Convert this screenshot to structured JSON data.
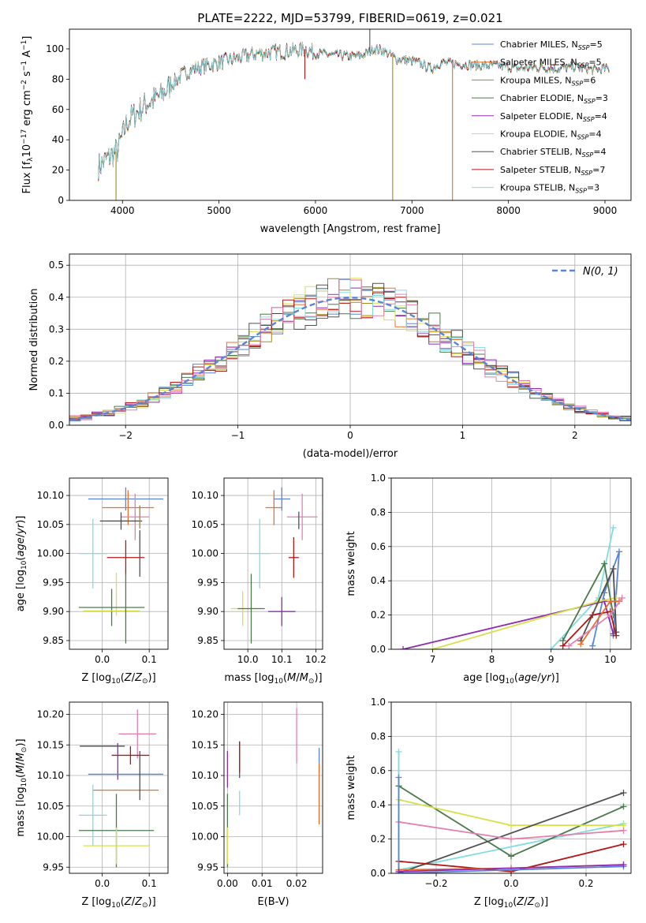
{
  "colors": {
    "Chabrier MILES": "#5b84d6",
    "Salpeter MILES": "#e8702a",
    "Kroupa MILES": "#a8891a",
    "Chabrier ELODIE": "#4a7a4a",
    "Salpeter ELODIE": "#8e2bb3",
    "Kroupa ELODIE": "#d6e04a",
    "Chabrier STELIB": "#505050",
    "Salpeter STELIB": "#b01818",
    "Kroupa STELIB": "#7fdde0",
    "extra_pink": "#e57fb0",
    "normal_curve": "#5b84d6",
    "grid": "#b0b0b0"
  },
  "chart_data": [
    {
      "id": "spectrum",
      "type": "line",
      "title": "PLATE=2222, MJD=53799, FIBERID=0619, z=0.021",
      "xlabel": "wavelength [Angstrom, rest frame]",
      "ylabel": "Flux [f",
      "xlim": [
        3450,
        9270
      ],
      "ylim": [
        0,
        113
      ],
      "xticks": [
        "4000",
        "5000",
        "6000",
        "7000",
        "8000",
        "9000"
      ],
      "yticks": [
        "0",
        "20",
        "40",
        "60",
        "80",
        "100"
      ],
      "grid": false,
      "legend_position": "top-right",
      "legend": [
        {
          "model": "Chabrier MILES",
          "n": "5"
        },
        {
          "model": "Salpeter MILES",
          "n": "5"
        },
        {
          "model": "Kroupa MILES",
          "n": "6"
        },
        {
          "model": "Chabrier ELODIE",
          "n": "3"
        },
        {
          "model": "Salpeter ELODIE",
          "n": "4"
        },
        {
          "model": "Kroupa ELODIE",
          "n": "4"
        },
        {
          "model": "Chabrier STELIB",
          "n": "4"
        },
        {
          "model": "Salpeter STELIB",
          "n": "7"
        },
        {
          "model": "Kroupa STELIB",
          "n": "3"
        }
      ],
      "spectrum_continuum": [
        [
          3750,
          22
        ],
        [
          3850,
          28
        ],
        [
          3950,
          33
        ],
        [
          4050,
          52
        ],
        [
          4150,
          58
        ],
        [
          4250,
          64
        ],
        [
          4400,
          69
        ],
        [
          4500,
          76
        ],
        [
          4600,
          82
        ],
        [
          4700,
          86
        ],
        [
          4800,
          88
        ],
        [
          5000,
          91
        ],
        [
          5200,
          94
        ],
        [
          5400,
          97
        ],
        [
          5600,
          98
        ],
        [
          5800,
          99
        ],
        [
          5900,
          100
        ],
        [
          6000,
          97
        ],
        [
          6200,
          96
        ],
        [
          6400,
          95
        ],
        [
          6500,
          96
        ],
        [
          6560,
          98
        ],
        [
          6600,
          100
        ],
        [
          6700,
          99
        ],
        [
          6850,
          93
        ],
        [
          7000,
          92
        ],
        [
          7100,
          90
        ],
        [
          7200,
          87
        ],
        [
          7300,
          91
        ],
        [
          7500,
          90
        ],
        [
          7700,
          89
        ],
        [
          7900,
          89
        ],
        [
          8100,
          87
        ],
        [
          8300,
          88
        ],
        [
          8500,
          87
        ],
        [
          8700,
          88
        ],
        [
          8900,
          86
        ],
        [
          9000,
          87
        ]
      ],
      "spectrum_features": [
        {
          "x": 3933,
          "series": "Kroupa MILES",
          "to": 0
        },
        {
          "x": 6800,
          "series": "Kroupa MILES",
          "to": 0
        },
        {
          "x": 7420,
          "series": "Salpeter MILES",
          "to": 0
        },
        {
          "x": 5890,
          "series": "Salpeter STELIB",
          "to": 80
        },
        {
          "x": 6563,
          "series": "Chabrier STELIB",
          "to": 113
        }
      ]
    },
    {
      "id": "residual_histogram",
      "type": "line",
      "xlabel": "(data-model)/error",
      "ylabel": "Normed distribution",
      "xlim": [
        -2.5,
        2.5
      ],
      "ylim": [
        0,
        0.535
      ],
      "xticks": [
        "−2",
        "−1",
        "0",
        "1",
        "2"
      ],
      "yticks": [
        "0.0",
        "0.1",
        "0.2",
        "0.3",
        "0.4",
        "0.5"
      ],
      "grid": true,
      "legend_position": "top-right",
      "legend": [
        {
          "label": "N(0,1)"
        }
      ],
      "histogram_bin_width": 0.1,
      "histogram_series": [
        "Chabrier MILES",
        "Salpeter MILES",
        "Kroupa MILES",
        "Chabrier ELODIE",
        "Salpeter ELODIE",
        "Kroupa ELODIE",
        "Chabrier STELIB",
        "Salpeter STELIB",
        "Kroupa STELIB",
        "extra_pink"
      ]
    },
    {
      "id": "age_vs_Z",
      "type": "scatter",
      "xlabel": "Z [log",
      "ylabel": "age  [log",
      "xlim": [
        -0.07,
        0.14
      ],
      "ylim": [
        9.835,
        10.13
      ],
      "xticks": [
        "0.0",
        "0.1"
      ],
      "yticks": [
        "9.85",
        "9.90",
        "9.95",
        "10.00",
        "10.05",
        "10.10"
      ],
      "grid": true,
      "points": [
        {
          "series": "Chabrier MILES",
          "x": 0.05,
          "y": 10.094,
          "xerr": 0.08,
          "yerr": 0.02
        },
        {
          "series": "Salpeter MILES",
          "x": 0.055,
          "y": 10.079,
          "xerr": 0.055,
          "yerr": 0.03
        },
        {
          "series": "extra_pink",
          "x": 0.07,
          "y": 10.063,
          "xerr": 0.03,
          "yerr": 0.04
        },
        {
          "series": "Chabrier STELIB",
          "x": 0.04,
          "y": 10.056,
          "xerr": 0.045,
          "yerr": 0.015
        },
        {
          "series": "Kroupa MILES",
          "x": 0.08,
          "y": 10.063,
          "xerr": 0.0,
          "yerr": 0.02
        },
        {
          "series": "Kroupa STELIB",
          "x": -0.02,
          "y": 10.0,
          "xerr": 0.03,
          "yerr": 0.06
        },
        {
          "series": "Salpeter STELIB",
          "x": 0.05,
          "y": 9.993,
          "xerr": 0.04,
          "yerr": 0.03
        },
        {
          "series": "Chabrier STELIB",
          "x": 0.08,
          "y": 10.0,
          "xerr": 0.0,
          "yerr": 0.04
        },
        {
          "series": "Kroupa ELODIE",
          "x": 0.03,
          "y": 9.93,
          "xerr": 0.0,
          "yerr": 0.037
        },
        {
          "series": "Chabrier ELODIE",
          "x": 0.02,
          "y": 9.907,
          "xerr": 0.07,
          "yerr": 0.032
        },
        {
          "series": "Kroupa ELODIE",
          "x": 0.02,
          "y": 9.901,
          "xerr": 0.06,
          "yerr": 0.0
        },
        {
          "series": "Chabrier ELODIE",
          "x": 0.05,
          "y": 9.905,
          "xerr": 0.0,
          "yerr": 0.06
        }
      ]
    },
    {
      "id": "age_vs_mass",
      "type": "scatter",
      "xlabel": "mass [log",
      "ylabel": "",
      "xlim": [
        9.93,
        10.22
      ],
      "ylim": [
        9.835,
        10.13
      ],
      "xticks": [
        "10.0",
        "10.1",
        "10.2"
      ],
      "yticks": [
        "9.85",
        "9.90",
        "9.95",
        "10.00",
        "10.05",
        "10.10"
      ],
      "grid": true,
      "points": [
        {
          "series": "Chabrier MILES",
          "x": 10.1,
          "y": 10.094,
          "xerr": 0.025,
          "yerr": 0.02
        },
        {
          "series": "Salpeter MILES",
          "x": 10.077,
          "y": 10.079,
          "xerr": 0.025,
          "yerr": 0.03
        },
        {
          "series": "extra_pink",
          "x": 10.16,
          "y": 10.063,
          "xerr": 0.045,
          "yerr": 0.04
        },
        {
          "series": "Chabrier STELIB",
          "x": 10.15,
          "y": 10.057,
          "xerr": 0.0,
          "yerr": 0.015
        },
        {
          "series": "Kroupa STELIB",
          "x": 10.035,
          "y": 10.0,
          "xerr": 0.03,
          "yerr": 0.06
        },
        {
          "series": "Salpeter STELIB",
          "x": 10.135,
          "y": 9.993,
          "xerr": 0.015,
          "yerr": 0.035
        },
        {
          "series": "Kroupa ELODIE",
          "x": 9.985,
          "y": 9.905,
          "xerr": 0.035,
          "yerr": 0.03
        },
        {
          "series": "Chabrier ELODIE",
          "x": 10.01,
          "y": 9.905,
          "xerr": 0.04,
          "yerr": 0.06
        },
        {
          "series": "Salpeter ELODIE",
          "x": 10.1,
          "y": 9.9,
          "xerr": 0.04,
          "yerr": 0.025
        }
      ]
    },
    {
      "id": "mass_weight_vs_age",
      "type": "line",
      "xlabel": "age  [log",
      "ylabel": "mass weight",
      "xlim": [
        6.3,
        10.35
      ],
      "ylim": [
        0,
        1.0
      ],
      "xticks": [
        "7",
        "8",
        "9",
        "10"
      ],
      "yticks": [
        "0.0",
        "0.2",
        "0.4",
        "0.6",
        "0.8",
        "1.0"
      ],
      "grid": true,
      "series": [
        {
          "name": "Kroupa STELIB",
          "points": [
            [
              9.0,
              0.0
            ],
            [
              9.8,
              0.3
            ],
            [
              10.05,
              0.71
            ]
          ]
        },
        {
          "name": "Chabrier MILES",
          "points": [
            [
              9.7,
              0.02
            ],
            [
              9.9,
              0.33
            ],
            [
              10.15,
              0.57
            ],
            [
              10.05,
              0.08
            ]
          ]
        },
        {
          "name": "Salpeter ELODIE",
          "points": [
            [
              6.5,
              0.0
            ],
            [
              9.9,
              0.28
            ],
            [
              10.05,
              0.09
            ]
          ]
        },
        {
          "name": "Kroupa ELODIE",
          "points": [
            [
              7.0,
              0.0
            ],
            [
              9.8,
              0.28
            ],
            [
              10.1,
              0.3
            ]
          ]
        },
        {
          "name": "Chabrier ELODIE",
          "points": [
            [
              9.2,
              0.05
            ],
            [
              9.9,
              0.5
            ],
            [
              10.05,
              0.2
            ]
          ]
        },
        {
          "name": "Chabrier STELIB",
          "points": [
            [
              9.5,
              0.05
            ],
            [
              10.05,
              0.47
            ],
            [
              10.1,
              0.1
            ]
          ]
        },
        {
          "name": "Salpeter STELIB",
          "points": [
            [
              9.2,
              0.02
            ],
            [
              9.7,
              0.2
            ],
            [
              10.0,
              0.22
            ],
            [
              10.1,
              0.08
            ]
          ]
        },
        {
          "name": "Salpeter MILES",
          "points": [
            [
              9.5,
              0.03
            ],
            [
              10.0,
              0.28
            ],
            [
              10.15,
              0.28
            ]
          ]
        },
        {
          "name": "extra_pink",
          "points": [
            [
              9.3,
              0.02
            ],
            [
              10.0,
              0.2
            ],
            [
              10.2,
              0.3
            ]
          ]
        }
      ]
    },
    {
      "id": "mass_vs_Z",
      "type": "scatter",
      "xlabel": "Z [log",
      "ylabel": "mass [log",
      "xlim": [
        -0.07,
        0.14
      ],
      "ylim": [
        9.94,
        10.22
      ],
      "xticks": [
        "0.0",
        "0.1"
      ],
      "yticks": [
        "9.95",
        "10.00",
        "10.05",
        "10.10",
        "10.15",
        "10.20"
      ],
      "grid": true,
      "points": [
        {
          "series": "extra_pink",
          "x": 0.075,
          "y": 10.168,
          "xerr": 0.04,
          "yerr": 0.04
        },
        {
          "series": "Chabrier STELIB",
          "x": 0.0,
          "y": 10.148,
          "xerr": 0.048,
          "yerr": 0.0
        },
        {
          "series": "Salpeter STELIB",
          "x": 0.06,
          "y": 10.133,
          "xerr": 0.04,
          "yerr": 0.015
        },
        {
          "series": "Salpeter ELODIE",
          "x": 0.033,
          "y": 10.123,
          "xerr": 0.0,
          "yerr": 0.03
        },
        {
          "series": "Chabrier MILES",
          "x": 0.05,
          "y": 10.102,
          "xerr": 0.08,
          "yerr": 0.0
        },
        {
          "series": "Salpeter MILES",
          "x": 0.05,
          "y": 10.076,
          "xerr": 0.07,
          "yerr": 0.0
        },
        {
          "series": "Chabrier STELIB",
          "x": 0.08,
          "y": 10.1,
          "xerr": 0.0,
          "yerr": 0.04
        },
        {
          "series": "Kroupa STELIB",
          "x": -0.02,
          "y": 10.035,
          "xerr": 0.03,
          "yerr": 0.05
        },
        {
          "series": "Chabrier ELODIE",
          "x": 0.03,
          "y": 10.01,
          "xerr": 0.08,
          "yerr": 0.06
        },
        {
          "series": "Kroupa ELODIE",
          "x": 0.03,
          "y": 9.985,
          "xerr": 0.07,
          "yerr": 0.03
        }
      ]
    },
    {
      "id": "mass_vs_EBV",
      "type": "scatter",
      "xlabel": "E(B-V)",
      "ylabel": "",
      "xlim": [
        -0.001,
        0.0275
      ],
      "ylim": [
        9.94,
        10.22
      ],
      "xticks": [
        "0.00",
        "0.01",
        "0.02"
      ],
      "yticks": [
        "9.95",
        "10.00",
        "10.05",
        "10.10",
        "10.15",
        "10.20"
      ],
      "grid": true,
      "points": [
        {
          "series": "extra_pink",
          "x": 0.02,
          "y": 10.165,
          "xerr": 0.0,
          "yerr": 0.045
        },
        {
          "series": "Chabrier STELIB",
          "x": 0.0035,
          "y": 10.126,
          "xerr": 0.0,
          "yerr": 0.03
        },
        {
          "series": "Salpeter STELIB",
          "x": 0.0035,
          "y": 10.13,
          "xerr": 0.0,
          "yerr": 0.025
        },
        {
          "series": "Salpeter ELODIE",
          "x": 0.0,
          "y": 10.11,
          "xerr": 0.0,
          "yerr": 0.03
        },
        {
          "series": "Chabrier MILES",
          "x": 0.0265,
          "y": 10.125,
          "xerr": 0.0,
          "yerr": 0.02
        },
        {
          "series": "Salpeter MILES",
          "x": 0.0265,
          "y": 10.07,
          "xerr": 0.0,
          "yerr": 0.05
        },
        {
          "series": "Kroupa STELIB",
          "x": 0.0035,
          "y": 10.055,
          "xerr": 0.0,
          "yerr": 0.02
        },
        {
          "series": "Chabrier ELODIE",
          "x": 0.0,
          "y": 10.01,
          "xerr": 0.0,
          "yerr": 0.06
        },
        {
          "series": "Kroupa ELODIE",
          "x": 0.0,
          "y": 9.985,
          "xerr": 0.0,
          "yerr": 0.03
        }
      ]
    },
    {
      "id": "mass_weight_vs_Z",
      "type": "line",
      "xlabel": "Z [log",
      "ylabel": "mass weight",
      "xlim": [
        -0.32,
        0.32
      ],
      "ylim": [
        0,
        1.0
      ],
      "xticks": [
        "−0.2",
        "0.0",
        "0.2"
      ],
      "yticks": [
        "0.0",
        "0.2",
        "0.4",
        "0.6",
        "0.8",
        "1.0"
      ],
      "grid": true,
      "series": [
        {
          "name": "Kroupa STELIB",
          "points": [
            [
              -0.3,
              0.71
            ],
            [
              -0.3,
              0.02
            ],
            [
              0.3,
              0.29
            ]
          ]
        },
        {
          "name": "Chabrier ELODIE",
          "points": [
            [
              -0.3,
              0.51
            ],
            [
              0.0,
              0.1
            ],
            [
              0.3,
              0.39
            ]
          ]
        },
        {
          "name": "Kroupa ELODIE",
          "points": [
            [
              -0.3,
              0.43
            ],
            [
              0.0,
              0.28
            ],
            [
              0.3,
              0.28
            ]
          ]
        },
        {
          "name": "Chabrier STELIB",
          "points": [
            [
              -0.3,
              0.0
            ],
            [
              0.3,
              0.47
            ]
          ]
        },
        {
          "name": "extra_pink",
          "points": [
            [
              -0.3,
              0.3
            ],
            [
              0.0,
              0.2
            ],
            [
              0.3,
              0.25
            ]
          ]
        },
        {
          "name": "Salpeter STELIB",
          "points": [
            [
              -0.3,
              0.07
            ],
            [
              0.0,
              0.01
            ],
            [
              0.3,
              0.17
            ]
          ]
        },
        {
          "name": "Salpeter MILES",
          "points": [
            [
              -0.3,
              0.02
            ],
            [
              0.0,
              0.03
            ],
            [
              0.3,
              0.05
            ]
          ]
        },
        {
          "name": "Chabrier MILES",
          "points": [
            [
              -0.3,
              0.56
            ],
            [
              -0.3,
              0.0
            ],
            [
              0.3,
              0.04
            ]
          ]
        },
        {
          "name": "Salpeter ELODIE",
          "points": [
            [
              -0.3,
              0.01
            ],
            [
              0.3,
              0.05
            ]
          ]
        }
      ]
    }
  ]
}
